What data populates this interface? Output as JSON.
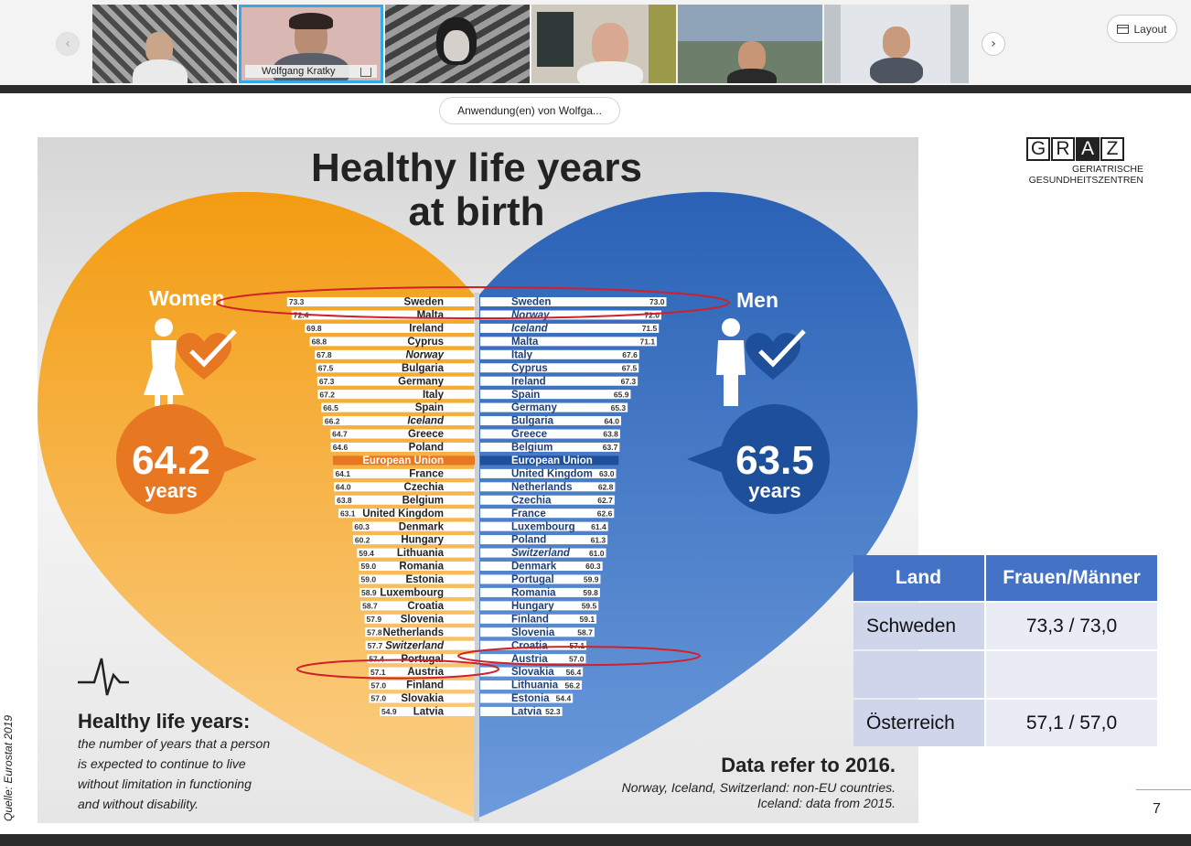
{
  "meeting": {
    "participants": [
      {
        "name": ""
      },
      {
        "name": "Wolfgang Kratky",
        "active": true
      },
      {
        "name": ""
      },
      {
        "name": ""
      },
      {
        "name": ""
      },
      {
        "name": ""
      }
    ],
    "layout_label": "Layout",
    "shared_app_label": "Anwendung(en) von Wolfga..."
  },
  "slide": {
    "logo": {
      "letters": [
        "G",
        "R",
        "A",
        "Z"
      ],
      "line1": "GERIATRISCHE",
      "line2": "GESUNDHEITSZENTREN"
    },
    "source": "Quelle: Eurostat 2019",
    "page_number": "7",
    "table": {
      "headers": [
        "Land",
        "Frauen/Männer"
      ],
      "rows": [
        [
          "Schweden",
          "73,3 / 73,0"
        ],
        [
          "",
          ""
        ],
        [
          "Österreich",
          "57,1 / 57,0"
        ]
      ]
    }
  },
  "infographic": {
    "title_line1": "Healthy life years",
    "title_line2": "at birth",
    "women_label": "Women",
    "men_label": "Men",
    "women_value": "64.2",
    "men_value": "63.5",
    "years_label": "years",
    "definition_title": "Healthy life years:",
    "definition_lines": [
      "the number of years that a person",
      "is expected to continue to live",
      "without limitation in functioning",
      "and without disability."
    ],
    "note_title": "Data refer to 2016.",
    "note_lines": [
      "Norway, Iceland, Switzerland: non-EU countries.",
      "Iceland: data from 2015."
    ],
    "colors": {
      "women": "#f5a623",
      "women_dark": "#e87722",
      "men": "#2f6bbf",
      "men_dark": "#1d4f9a",
      "highlight": "#d0202a"
    }
  },
  "chart_data": {
    "type": "bar",
    "title": "Healthy life years at birth",
    "series": [
      {
        "name": "Women",
        "categories": [
          "Sweden",
          "Malta",
          "Ireland",
          "Cyprus",
          "Norway",
          "Bulgaria",
          "Germany",
          "Italy",
          "Spain",
          "Iceland",
          "Greece",
          "Poland",
          "European Union",
          "France",
          "Czechia",
          "Belgium",
          "United Kingdom",
          "Denmark",
          "Hungary",
          "Lithuania",
          "Romania",
          "Estonia",
          "Luxembourg",
          "Croatia",
          "Slovenia",
          "Netherlands",
          "Switzerland",
          "Portugal",
          "Austria",
          "Finland",
          "Slovakia",
          "Latvia"
        ],
        "values": [
          73.3,
          72.4,
          69.8,
          68.8,
          67.8,
          67.5,
          67.3,
          67.2,
          66.5,
          66.2,
          64.7,
          64.6,
          64.2,
          64.1,
          64.0,
          63.8,
          63.1,
          60.3,
          60.2,
          59.4,
          59.0,
          59.0,
          58.9,
          58.7,
          57.9,
          57.8,
          57.7,
          57.4,
          57.1,
          57.0,
          57.0,
          54.9
        ],
        "value_labels": [
          "73.3",
          "72.4",
          "69.8",
          "68.8",
          "67.8",
          "67.5",
          "67.3",
          "67.2",
          "66.5",
          "66.2",
          "64.7",
          "64.6",
          "",
          "64.1",
          "64.0",
          "63.8",
          "63.1",
          "60.3",
          "60.2",
          "59.4",
          "59.0",
          "59.0",
          "58.9",
          "58.7",
          "57.9",
          "57.8",
          "57.7",
          "57.4",
          "57.1",
          "57.0",
          "57.0",
          "54.9"
        ]
      },
      {
        "name": "Men",
        "categories": [
          "Sweden",
          "Norway",
          "Iceland",
          "Malta",
          "Italy",
          "Cyprus",
          "Ireland",
          "Spain",
          "Germany",
          "Bulgaria",
          "Greece",
          "Belgium",
          "European Union",
          "United Kingdom",
          "Netherlands",
          "Czechia",
          "France",
          "Luxembourg",
          "Poland",
          "Switzerland",
          "Denmark",
          "Portugal",
          "Romania",
          "Hungary",
          "Finland",
          "Slovenia",
          "Croatia",
          "Austria",
          "Slovakia",
          "Lithuania",
          "Estonia",
          "Latvia"
        ],
        "values": [
          73.0,
          72.0,
          71.5,
          71.1,
          67.6,
          67.5,
          67.3,
          65.9,
          65.3,
          64.0,
          63.8,
          63.7,
          63.5,
          63.0,
          62.8,
          62.7,
          62.6,
          61.4,
          61.3,
          61.0,
          60.3,
          59.9,
          59.8,
          59.5,
          59.1,
          58.7,
          57.1,
          57.0,
          56.4,
          56.2,
          54.4,
          52.3
        ],
        "value_labels": [
          "73.0",
          "72.0",
          "71.5",
          "71.1",
          "67.6",
          "67.5",
          "67.3",
          "65.9",
          "65.3",
          "64.0",
          "63.8",
          "63.7",
          "",
          "63.0",
          "62.8",
          "62.7",
          "62.6",
          "61.4",
          "61.3",
          "61.0",
          "60.3",
          "59.9",
          "59.8",
          "59.5",
          "59.1",
          "58.7",
          "57.1",
          "57.0",
          "56.4",
          "56.2",
          "54.4",
          "52.3"
        ]
      }
    ],
    "italic_categories": [
      "Norway",
      "Iceland",
      "Switzerland"
    ],
    "highlighted": [
      "Sweden",
      "Austria"
    ]
  }
}
